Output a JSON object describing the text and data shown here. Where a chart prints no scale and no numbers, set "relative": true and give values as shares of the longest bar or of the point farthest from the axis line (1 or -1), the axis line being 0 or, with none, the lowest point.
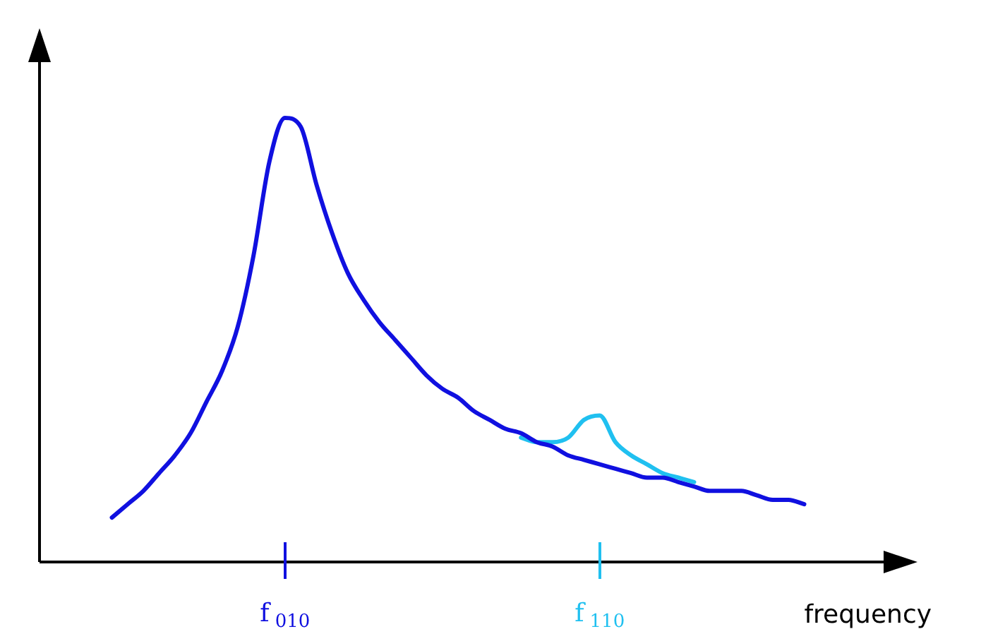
{
  "chart_data": {
    "type": "line",
    "relative": true,
    "xlabel": "frequency",
    "categories": [
      null,
      null,
      null,
      null,
      null,
      null,
      null,
      null,
      null,
      null,
      null,
      "f$_{010}$",
      null,
      null,
      null,
      null,
      null,
      null,
      null,
      null,
      null,
      null,
      null,
      null,
      null,
      null,
      null,
      null,
      null,
      null,
      null,
      "f$_{110}$",
      null,
      null,
      null,
      null,
      null,
      null,
      null,
      null,
      null,
      null,
      null,
      null,
      null
    ],
    "series": [
      {
        "color": "#1010e0",
        "values": [
          0.1,
          0.13,
          0.16,
          0.2,
          0.24,
          0.29,
          0.36,
          0.43,
          0.53,
          0.69,
          0.9,
          1.0,
          0.98,
          0.85,
          0.74,
          0.65,
          0.59,
          0.54,
          0.5,
          0.46,
          0.42,
          0.39,
          0.37,
          0.34,
          0.32,
          0.3,
          0.29,
          0.27,
          0.26,
          0.24,
          0.23,
          0.22,
          0.21,
          0.2,
          0.19,
          0.19,
          0.18,
          0.17,
          0.16,
          0.16,
          0.16,
          0.15,
          0.14,
          0.14,
          0.13
        ]
      },
      {
        "color": "#20c0f0",
        "values": [
          null,
          null,
          null,
          null,
          null,
          null,
          null,
          null,
          null,
          null,
          null,
          null,
          null,
          null,
          null,
          null,
          null,
          null,
          null,
          null,
          null,
          null,
          null,
          null,
          null,
          null,
          0.28,
          0.27,
          0.27,
          0.28,
          0.32,
          0.33,
          0.27,
          0.24,
          0.22,
          0.2,
          0.19,
          0.18,
          null,
          null,
          null,
          null,
          null,
          null,
          null
        ]
      }
    ],
    "grid": false,
    "legend": false,
    "marker": "none",
    "line_style": "solid"
  }
}
